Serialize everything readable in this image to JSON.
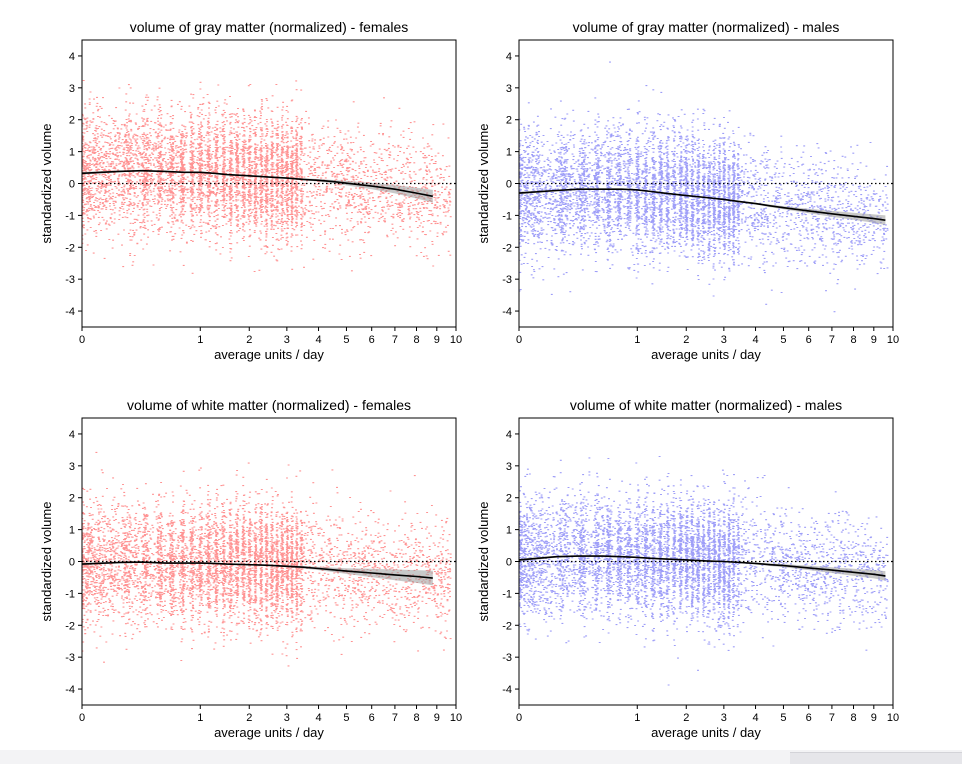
{
  "chart_data": [
    {
      "type": "scatter",
      "title": "volume of gray matter (normalized) - females",
      "xlabel": "average units / day",
      "ylabel": "standardized volume",
      "xscale": "sqrt",
      "xlim": [
        0,
        10
      ],
      "ylim": [
        -4.5,
        4.5
      ],
      "xticks": [
        "0",
        "1",
        "2",
        "3",
        "4",
        "5",
        "6",
        "7",
        "8",
        "9",
        "10"
      ],
      "yticks": [
        "-4",
        "-3",
        "-2",
        "-1",
        "0",
        "1",
        "2",
        "3",
        "4"
      ],
      "point_color": "#ff6f6f",
      "point_count_approx": 9000,
      "reference_line": {
        "y": 0,
        "style": "dotted"
      },
      "trend": {
        "x": [
          0,
          0.1,
          0.25,
          0.5,
          0.75,
          1,
          1.25,
          1.5,
          2,
          2.5,
          3,
          3.5,
          4,
          4.5,
          5,
          6,
          7,
          8,
          8.8
        ],
        "y": [
          0.32,
          0.38,
          0.4,
          0.38,
          0.35,
          0.35,
          0.32,
          0.28,
          0.24,
          0.2,
          0.17,
          0.13,
          0.1,
          0.06,
          0.01,
          -0.08,
          -0.18,
          -0.3,
          -0.4
        ],
        "ci_halfwidth": [
          0.04,
          0.03,
          0.02,
          0.02,
          0.02,
          0.02,
          0.02,
          0.02,
          0.02,
          0.02,
          0.02,
          0.03,
          0.04,
          0.05,
          0.07,
          0.1,
          0.13,
          0.17,
          0.2
        ]
      }
    },
    {
      "type": "scatter",
      "title": "volume of gray matter (normalized) - males",
      "xlabel": "average units / day",
      "ylabel": "standardized volume",
      "xscale": "sqrt",
      "xlim": [
        0,
        10
      ],
      "ylim": [
        -4.5,
        4.5
      ],
      "xticks": [
        "0",
        "1",
        "2",
        "3",
        "4",
        "5",
        "6",
        "7",
        "8",
        "9",
        "10"
      ],
      "yticks": [
        "-4",
        "-3",
        "-2",
        "-1",
        "0",
        "1",
        "2",
        "3",
        "4"
      ],
      "point_color": "#7e7ef5",
      "point_count_approx": 9000,
      "reference_line": {
        "y": 0,
        "style": "dotted"
      },
      "trend": {
        "x": [
          0,
          0.1,
          0.25,
          0.5,
          0.75,
          1,
          1.25,
          1.5,
          2,
          2.5,
          3,
          3.5,
          4,
          4.5,
          5,
          6,
          7,
          8,
          9,
          9.6
        ],
        "y": [
          -0.3,
          -0.22,
          -0.18,
          -0.18,
          -0.18,
          -0.2,
          -0.25,
          -0.3,
          -0.38,
          -0.44,
          -0.5,
          -0.57,
          -0.63,
          -0.7,
          -0.76,
          -0.86,
          -0.95,
          -1.03,
          -1.1,
          -1.15
        ],
        "ci_halfwidth": [
          0.04,
          0.03,
          0.02,
          0.02,
          0.02,
          0.02,
          0.02,
          0.02,
          0.02,
          0.02,
          0.02,
          0.03,
          0.03,
          0.04,
          0.05,
          0.07,
          0.09,
          0.11,
          0.13,
          0.15
        ]
      }
    },
    {
      "type": "scatter",
      "title": "volume of white matter (normalized) - females",
      "xlabel": "average units / day",
      "ylabel": "standardized volume",
      "xscale": "sqrt",
      "xlim": [
        0,
        10
      ],
      "ylim": [
        -4.5,
        4.5
      ],
      "xticks": [
        "0",
        "1",
        "2",
        "3",
        "4",
        "5",
        "6",
        "7",
        "8",
        "9",
        "10"
      ],
      "yticks": [
        "-4",
        "-3",
        "-2",
        "-1",
        "0",
        "1",
        "2",
        "3",
        "4"
      ],
      "point_color": "#ff6f6f",
      "point_count_approx": 9000,
      "reference_line": {
        "y": 0,
        "style": "dotted"
      },
      "trend": {
        "x": [
          0,
          0.1,
          0.25,
          0.5,
          0.75,
          1,
          1.25,
          1.5,
          2,
          2.5,
          3,
          3.5,
          4,
          4.5,
          5,
          6,
          7,
          8,
          8.8
        ],
        "y": [
          -0.08,
          -0.03,
          -0.02,
          -0.05,
          -0.05,
          -0.05,
          -0.06,
          -0.08,
          -0.1,
          -0.12,
          -0.15,
          -0.18,
          -0.22,
          -0.26,
          -0.3,
          -0.36,
          -0.42,
          -0.47,
          -0.52
        ],
        "ci_halfwidth": [
          0.04,
          0.03,
          0.02,
          0.02,
          0.02,
          0.02,
          0.02,
          0.02,
          0.02,
          0.02,
          0.03,
          0.04,
          0.05,
          0.07,
          0.09,
          0.13,
          0.17,
          0.2,
          0.23
        ]
      }
    },
    {
      "type": "scatter",
      "title": "volume of white matter (normalized) - males",
      "xlabel": "average units / day",
      "ylabel": "standardized volume",
      "xscale": "sqrt",
      "xlim": [
        0,
        10
      ],
      "ylim": [
        -4.5,
        4.5
      ],
      "xticks": [
        "0",
        "1",
        "2",
        "3",
        "4",
        "5",
        "6",
        "7",
        "8",
        "9",
        "10"
      ],
      "yticks": [
        "-4",
        "-3",
        "-2",
        "-1",
        "0",
        "1",
        "2",
        "3",
        "4"
      ],
      "point_color": "#7e7ef5",
      "point_count_approx": 9000,
      "reference_line": {
        "y": 0,
        "style": "dotted"
      },
      "trend": {
        "x": [
          0,
          0.1,
          0.25,
          0.5,
          0.75,
          1,
          1.25,
          1.5,
          2,
          2.5,
          3,
          3.5,
          4,
          4.5,
          5,
          6,
          7,
          8,
          9,
          9.6
        ],
        "y": [
          0.05,
          0.15,
          0.17,
          0.17,
          0.15,
          0.13,
          0.1,
          0.08,
          0.05,
          0.02,
          0.0,
          -0.03,
          -0.06,
          -0.1,
          -0.13,
          -0.2,
          -0.27,
          -0.34,
          -0.4,
          -0.45
        ],
        "ci_halfwidth": [
          0.04,
          0.03,
          0.02,
          0.02,
          0.02,
          0.02,
          0.02,
          0.02,
          0.02,
          0.02,
          0.02,
          0.03,
          0.03,
          0.04,
          0.05,
          0.07,
          0.09,
          0.11,
          0.13,
          0.15
        ]
      }
    }
  ]
}
